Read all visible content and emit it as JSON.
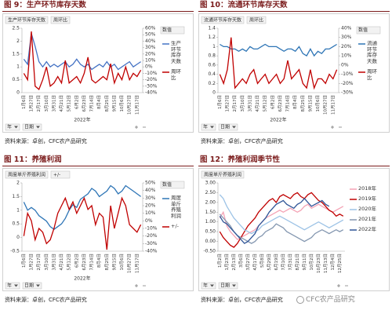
{
  "chart_data": [
    {
      "type": "line",
      "title": "图 9：生产环节库存天数",
      "source": "资料来源：卓创，CFC农产品研究",
      "field_buttons": [
        "生产环节库存天数",
        "周环比"
      ],
      "legend_title": "数值",
      "filter_buttons": [
        "年",
        "日期"
      ],
      "x_group_label": "2022年",
      "categories": [
        "1月6日",
        null,
        "1月27日",
        null,
        "2月17日",
        null,
        "3月10日",
        null,
        "3月31日",
        null,
        "4月21日",
        null,
        "5月12日",
        null,
        "6月2日",
        null,
        "6月23日",
        null,
        "7月14日",
        null,
        "8月4日",
        null,
        "8月25日",
        null,
        "9月15日",
        null,
        "10月6日",
        null,
        "10月27日",
        null,
        "11月17日",
        null
      ],
      "ylim": [
        0,
        2.5
      ],
      "yticks": [
        0,
        0.5,
        1,
        1.5,
        2,
        2.5
      ],
      "y2lim": [
        -40,
        60
      ],
      "y2ticks": [
        {
          "value": -40,
          "label": "-40%"
        },
        {
          "value": -30,
          "label": "-30%"
        },
        {
          "value": -20,
          "label": "-20%"
        },
        {
          "value": -10,
          "label": "-10%"
        },
        {
          "value": 0,
          "label": "0%"
        },
        {
          "value": 10,
          "label": "10%"
        },
        {
          "value": 20,
          "label": "20%"
        },
        {
          "value": 30,
          "label": "30%"
        },
        {
          "value": 40,
          "label": "40%"
        },
        {
          "value": 50,
          "label": "50%"
        },
        {
          "value": 60,
          "label": "60%"
        }
      ],
      "series": [
        {
          "name": "生产环节库存天数",
          "color": "#4472c4",
          "values": [
            1.3,
            1.1,
            2.3,
            1.8,
            1.2,
            1.0,
            1.2,
            1.0,
            1.1,
            1.0,
            1.1,
            1.2,
            1.0,
            1.1,
            1.3,
            1.1,
            1.0,
            1.1,
            0.9,
            1.0,
            1.1,
            1.0,
            1.2,
            1.0,
            1.1,
            0.9,
            1.0,
            1.1,
            1.2,
            1.0,
            1.1,
            1.2
          ]
        },
        {
          "name": "周环比",
          "color": "#c00000",
          "axis": "y2",
          "values": [
            -10,
            -20,
            55,
            -30,
            -35,
            -20,
            0,
            -30,
            -25,
            -15,
            -25,
            10,
            -25,
            -20,
            -15,
            -25,
            -10,
            15,
            -20,
            -25,
            -20,
            -15,
            -20,
            5,
            -25,
            -10,
            -20,
            0,
            -20,
            -10,
            -15,
            -5
          ]
        }
      ]
    },
    {
      "type": "line",
      "title": "图 10：流通环节库存天数",
      "source": "资料来源：卓创，CFC农产品研究",
      "field_buttons": [
        "流通环节库存天数",
        "周环比"
      ],
      "legend_title": "数值",
      "filter_buttons": [
        "年",
        "日期"
      ],
      "x_group_label": "2022年",
      "categories": [
        "1月6日",
        null,
        "1月27日",
        null,
        "2月17日",
        null,
        "3月10日",
        null,
        "3月31日",
        null,
        "4月21日",
        null,
        "5月12日",
        null,
        "6月2日",
        null,
        "6月23日",
        null,
        "7月14日",
        null,
        "8月4日",
        null,
        "8月25日",
        null,
        "9月15日",
        null,
        "10月6日",
        null,
        "10月27日",
        null,
        "11月17日",
        null
      ],
      "ylim": [
        0,
        1.4
      ],
      "yticks": [
        0,
        0.2,
        0.4,
        0.6,
        0.8,
        1,
        1.2,
        1.4
      ],
      "y2lim": [
        -30,
        40
      ],
      "y2ticks": [
        {
          "value": -30,
          "label": "-30%"
        },
        {
          "value": -20,
          "label": "-20%"
        },
        {
          "value": -10,
          "label": "-10%"
        },
        {
          "value": 0,
          "label": "0%"
        },
        {
          "value": 10,
          "label": "10%"
        },
        {
          "value": 20,
          "label": "20%"
        },
        {
          "value": 30,
          "label": "30%"
        },
        {
          "value": 40,
          "label": "40%"
        }
      ],
      "series": [
        {
          "name": "流通环节库存天数",
          "color": "#2e75b6",
          "values": [
            1.05,
            1.0,
            1.0,
            0.95,
            0.95,
            0.9,
            0.95,
            0.9,
            1.0,
            0.95,
            0.95,
            1.0,
            1.05,
            1.0,
            1.0,
            1.0,
            0.95,
            0.9,
            0.95,
            0.95,
            0.9,
            1.0,
            0.85,
            0.8,
            0.95,
            0.8,
            0.9,
            0.85,
            0.95,
            0.95,
            1.0,
            1.05
          ]
        },
        {
          "name": "周环比",
          "color": "#c00000",
          "axis": "y2",
          "values": [
            -10,
            -20,
            -5,
            30,
            -25,
            -20,
            -15,
            -20,
            -10,
            -5,
            -20,
            -15,
            -10,
            -20,
            -15,
            -10,
            -20,
            -15,
            5,
            -15,
            -10,
            -5,
            -20,
            -25,
            -5,
            -25,
            -15,
            -15,
            -20,
            -10,
            -15,
            -5
          ]
        }
      ]
    },
    {
      "type": "line",
      "title": "图 11：养殖利润",
      "source": "资料来源：卓创，CFC农产品研究",
      "field_buttons": [
        "周度单斤养殖利润",
        "+/-"
      ],
      "legend_title": "数值",
      "filter_buttons": [
        "年",
        "日期"
      ],
      "x_group_label": "2022年",
      "categories": [
        "1月6日",
        null,
        "1月27日",
        null,
        "2月17日",
        null,
        "3月10日",
        null,
        "3月31日",
        null,
        "4月21日",
        null,
        "5月12日",
        null,
        "6月2日",
        null,
        "6月23日",
        null,
        "7月14日",
        null,
        "8月4日",
        null,
        "8月25日",
        null,
        "9月15日",
        null,
        "10月6日",
        null,
        "10月27日",
        null,
        "11月17日",
        null
      ],
      "ylim": [
        -0.5,
        2
      ],
      "yticks": [
        -0.5,
        0,
        0.5,
        1,
        1.5,
        2
      ],
      "y2lim": [
        -40,
        50
      ],
      "y2ticks": [
        {
          "value": -40,
          "label": "-40%"
        },
        {
          "value": -30,
          "label": "-30%"
        },
        {
          "value": -20,
          "label": "-20%"
        },
        {
          "value": -10,
          "label": "-10%"
        },
        {
          "value": 0,
          "label": "0%"
        },
        {
          "value": 10,
          "label": "10%"
        },
        {
          "value": 20,
          "label": "20%"
        },
        {
          "value": 30,
          "label": "30%"
        },
        {
          "value": 40,
          "label": "40%"
        },
        {
          "value": 50,
          "label": "50%"
        }
      ],
      "series": [
        {
          "name": "周度单斤养殖利润",
          "color": "#2e75b6",
          "values": [
            1.3,
            1.0,
            1.1,
            1.0,
            0.8,
            0.7,
            0.6,
            0.4,
            0.3,
            0.4,
            0.5,
            0.7,
            1.0,
            1.2,
            1.1,
            1.4,
            1.5,
            1.6,
            1.8,
            1.7,
            1.5,
            1.6,
            1.7,
            1.9,
            1.8,
            1.6,
            1.7,
            1.9,
            1.8,
            1.7,
            1.6,
            1.5
          ]
        },
        {
          "name": "+/-",
          "color": "#c00000",
          "axis": "y2",
          "values": [
            -20,
            10,
            0,
            -25,
            -10,
            -15,
            -30,
            -25,
            -10,
            10,
            20,
            30,
            15,
            25,
            10,
            20,
            30,
            15,
            20,
            -5,
            10,
            5,
            -38,
            20,
            -10,
            10,
            30,
            20,
            -5,
            -10,
            -15,
            -5
          ]
        }
      ]
    },
    {
      "type": "line",
      "title": "图 12：养殖利润季节性",
      "source": "资料来源：卓创，CFC农产品研究",
      "field_buttons": [
        "周度单斤养殖利润"
      ],
      "filter_buttons": [
        "年",
        "日期"
      ],
      "categories": [
        "1月2日",
        null,
        "1月23日",
        null,
        "2月13日",
        null,
        "3月6日",
        null,
        "3月27日",
        null,
        "4月17日",
        null,
        "5月8日",
        null,
        "5月29日",
        null,
        "6月19日",
        null,
        "7月10日",
        null,
        "7月31日",
        null,
        "8月21日",
        null,
        "9月11日",
        null,
        "10月2日",
        null,
        "10月23日",
        null,
        "11月13日",
        null,
        "12月4日",
        null,
        "12月25日",
        null
      ],
      "ylim": [
        -0.5,
        3
      ],
      "yticks": [
        {
          "value": -0.5,
          "label": "-0.50"
        },
        {
          "value": 0,
          "label": "0.00"
        },
        {
          "value": 0.5,
          "label": "0.50"
        },
        {
          "value": 1,
          "label": "1.00"
        },
        {
          "value": 1.5,
          "label": "1.50"
        },
        {
          "value": 2,
          "label": "2.00"
        },
        {
          "value": 2.5,
          "label": "2.50"
        },
        {
          "value": 3,
          "label": "3.00"
        }
      ],
      "series": [
        {
          "name": "2018年",
          "color": "#f4a3b5",
          "values": [
            1.2,
            1.5,
            0.8,
            0.5,
            0.3,
            0.1,
            0.2,
            0.3,
            0.4,
            0.5,
            0.6,
            0.8,
            1.0,
            1.2,
            1.3,
            1.4,
            1.5,
            1.6,
            1.5,
            1.6,
            1.7,
            1.6,
            1.5,
            1.6,
            1.8,
            1.9,
            1.7,
            1.8,
            1.9,
            1.8,
            1.7,
            1.6,
            1.5,
            1.6,
            1.7,
            1.8
          ]
        },
        {
          "name": "2019年",
          "color": "#c00000",
          "values": [
            0.5,
            0.2,
            0.0,
            -0.2,
            -0.3,
            -0.1,
            0.2,
            0.5,
            0.8,
            1.0,
            1.2,
            1.5,
            1.7,
            1.9,
            2.1,
            2.2,
            2.0,
            2.3,
            2.4,
            2.3,
            2.2,
            2.4,
            2.5,
            2.3,
            2.2,
            2.4,
            2.5,
            2.3,
            2.1,
            2.0,
            1.8,
            1.6,
            1.5,
            1.3,
            1.4,
            1.3
          ]
        },
        {
          "name": "2020年",
          "color": "#9dc3e6",
          "values": [
            2.4,
            2.2,
            1.8,
            1.5,
            1.2,
            1.0,
            0.8,
            0.6,
            0.5,
            0.4,
            0.5,
            0.6,
            0.8,
            0.9,
            1.0,
            1.1,
            1.2,
            1.3,
            1.2,
            1.1,
            1.0,
            0.9,
            0.8,
            0.7,
            0.6,
            0.7,
            0.8,
            0.9,
            1.0,
            0.9,
            0.8,
            0.7,
            0.8,
            0.9,
            1.0,
            1.1
          ]
        },
        {
          "name": "2021年",
          "color": "#8497b0",
          "values": [
            1.4,
            1.2,
            1.0,
            0.8,
            0.5,
            0.3,
            0.2,
            0.1,
            0.0,
            -0.1,
            0.0,
            0.2,
            0.3,
            0.5,
            0.6,
            0.7,
            0.9,
            0.8,
            0.7,
            0.5,
            0.4,
            0.3,
            0.2,
            0.1,
            0.0,
            0.1,
            0.2,
            0.4,
            0.5,
            0.6,
            0.5,
            0.4,
            0.5,
            0.6,
            0.5,
            0.6
          ]
        },
        {
          "name": "2022年",
          "color": "#2f5597",
          "values": [
            1.3,
            1.0,
            0.9,
            0.7,
            0.5,
            0.3,
            0.1,
            -0.1,
            0.0,
            0.2,
            0.4,
            0.8,
            1.0,
            1.2,
            1.5,
            1.7,
            1.9,
            2.0,
            2.1,
            1.9,
            1.8,
            1.7,
            1.9,
            2.0,
            2.2,
            2.0,
            1.8,
            1.9,
            2.0,
            2.1,
            1.9,
            1.8,
            null,
            null,
            null,
            null
          ]
        }
      ]
    }
  ],
  "watermark": "CFC农产品研究"
}
